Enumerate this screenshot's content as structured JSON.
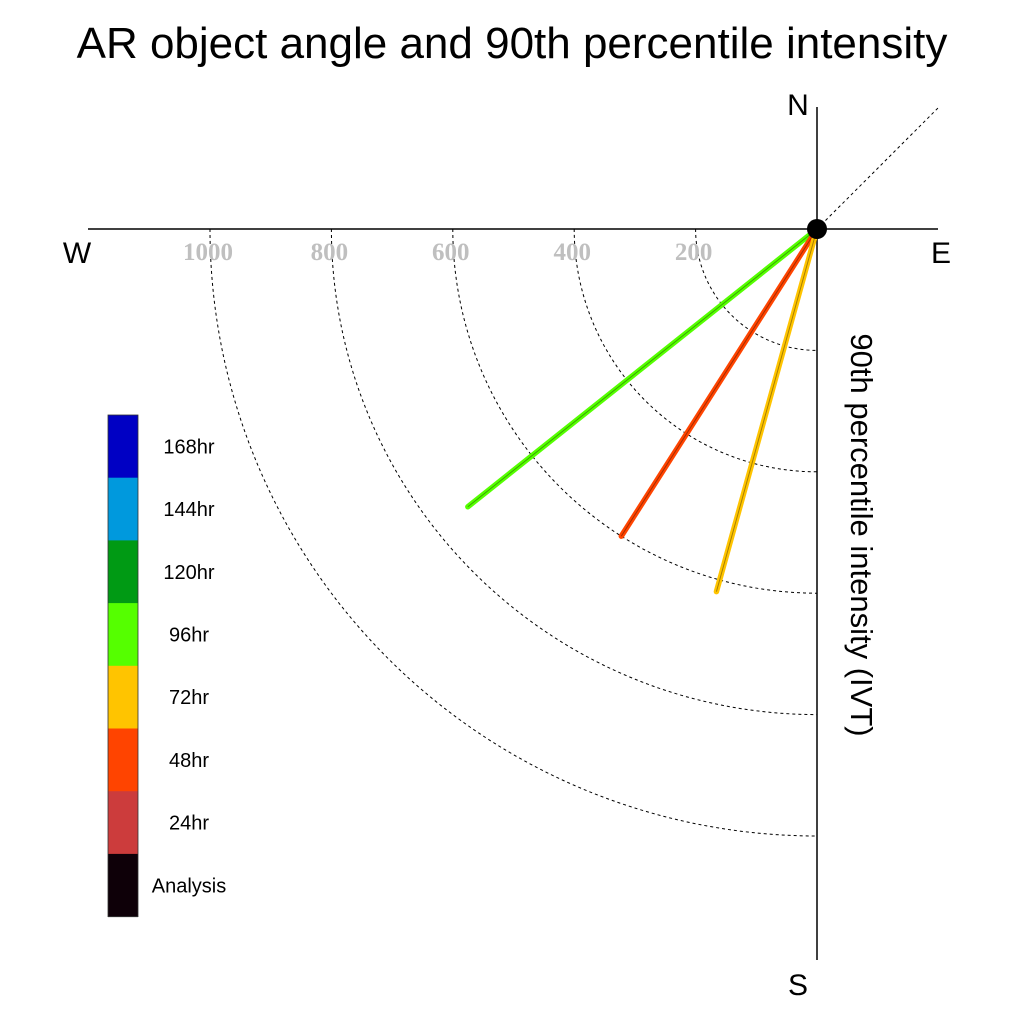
{
  "chart_data": {
    "type": "polar-vector",
    "title": "AR object angle and 90th percentile intensity",
    "ylabel": "90th percentile intensity (IVT)",
    "compass": {
      "north": "N",
      "south": "S",
      "east": "E",
      "west": "W"
    },
    "radial_ticks": [
      200,
      400,
      600,
      800,
      1000
    ],
    "radial_tick_labels": [
      "200",
      "400",
      "600",
      "800",
      "1000"
    ],
    "rmax": 1200,
    "grid": true,
    "reference_angle_deg": 45,
    "legend": {
      "placement": "left",
      "items": [
        {
          "label": "168hr",
          "color": "#0000c4"
        },
        {
          "label": "144hr",
          "color": "#0099dd"
        },
        {
          "label": "120hr",
          "color": "#009a14"
        },
        {
          "label": "96hr",
          "color": "#55ff00"
        },
        {
          "label": "72hr",
          "color": "#ffc400"
        },
        {
          "label": "48hr",
          "color": "#ff4400"
        },
        {
          "label": "24hr",
          "color": "#cc3c3c"
        },
        {
          "label": "Analysis",
          "color": "#0e0008"
        }
      ]
    },
    "series": [
      {
        "name": "96hr",
        "color": "#55ff00",
        "angle_deg": 231.5,
        "intensity": 735
      },
      {
        "name": "48hr",
        "color": "#ff4400",
        "angle_deg": 212.5,
        "intensity": 600
      },
      {
        "name": "72hr",
        "color": "#ffc400",
        "angle_deg": 195.5,
        "intensity": 620
      }
    ]
  }
}
